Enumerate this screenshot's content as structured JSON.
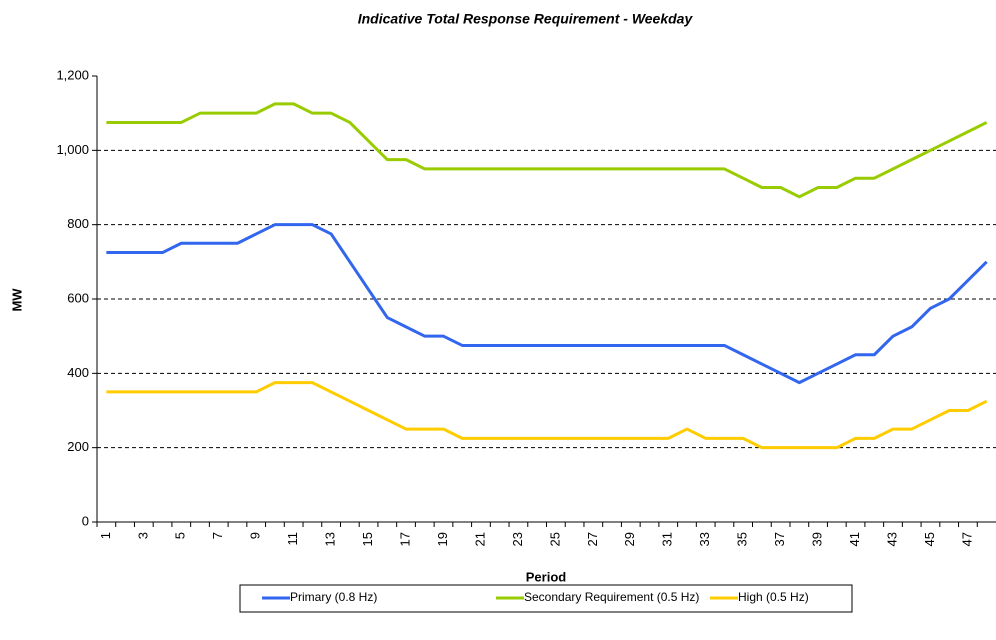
{
  "chart_data": {
    "type": "line",
    "title": "Indicative Total Response Requirement - Weekday",
    "x_label": "Period",
    "y_label": "MW",
    "categories": [
      "1",
      null,
      "3",
      null,
      "5",
      null,
      "7",
      null,
      "9",
      null,
      "11",
      null,
      "13",
      null,
      "15",
      null,
      "17",
      null,
      "19",
      null,
      "21",
      null,
      "23",
      null,
      "25",
      null,
      "27",
      null,
      "29",
      null,
      "31",
      null,
      "33",
      null,
      "35",
      null,
      "37",
      null,
      "39",
      null,
      "41",
      null,
      "43",
      null,
      "45",
      null,
      "47",
      null
    ],
    "ylim": [
      0,
      1200
    ],
    "yticks": [
      0,
      200,
      400,
      600,
      800,
      {
        "value": 1000,
        "label": "1,000"
      },
      {
        "value": 1200,
        "label": "1,200"
      }
    ],
    "grid": true,
    "legend": "bottom",
    "series": [
      {
        "name": "Primary (0.8 Hz)",
        "color": "#3366ee",
        "values": [
          725,
          725,
          725,
          725,
          750,
          750,
          750,
          750,
          775,
          800,
          800,
          800,
          775,
          700,
          625,
          550,
          525,
          500,
          500,
          475,
          475,
          475,
          475,
          475,
          475,
          475,
          475,
          475,
          475,
          475,
          475,
          475,
          475,
          475,
          450,
          425,
          400,
          375,
          400,
          425,
          450,
          450,
          500,
          525,
          575,
          600,
          650,
          700
        ]
      },
      {
        "name": "Secondary Requirement (0.5 Hz)",
        "color": "#99cc00",
        "values": [
          1075,
          1075,
          1075,
          1075,
          1075,
          1100,
          1100,
          1100,
          1100,
          1125,
          1125,
          1100,
          1100,
          1075,
          1025,
          975,
          975,
          950,
          950,
          950,
          950,
          950,
          950,
          950,
          950,
          950,
          950,
          950,
          950,
          950,
          950,
          950,
          950,
          950,
          925,
          900,
          900,
          875,
          900,
          900,
          925,
          925,
          950,
          975,
          1000,
          1025,
          1050,
          1075
        ]
      },
      {
        "name": "High (0.5 Hz)",
        "color": "#ffcc00",
        "values": [
          350,
          350,
          350,
          350,
          350,
          350,
          350,
          350,
          350,
          375,
          375,
          375,
          350,
          325,
          300,
          275,
          250,
          250,
          250,
          225,
          225,
          225,
          225,
          225,
          225,
          225,
          225,
          225,
          225,
          225,
          225,
          250,
          225,
          225,
          225,
          200,
          200,
          200,
          200,
          200,
          225,
          225,
          250,
          250,
          275,
          300,
          300,
          325
        ]
      }
    ]
  }
}
